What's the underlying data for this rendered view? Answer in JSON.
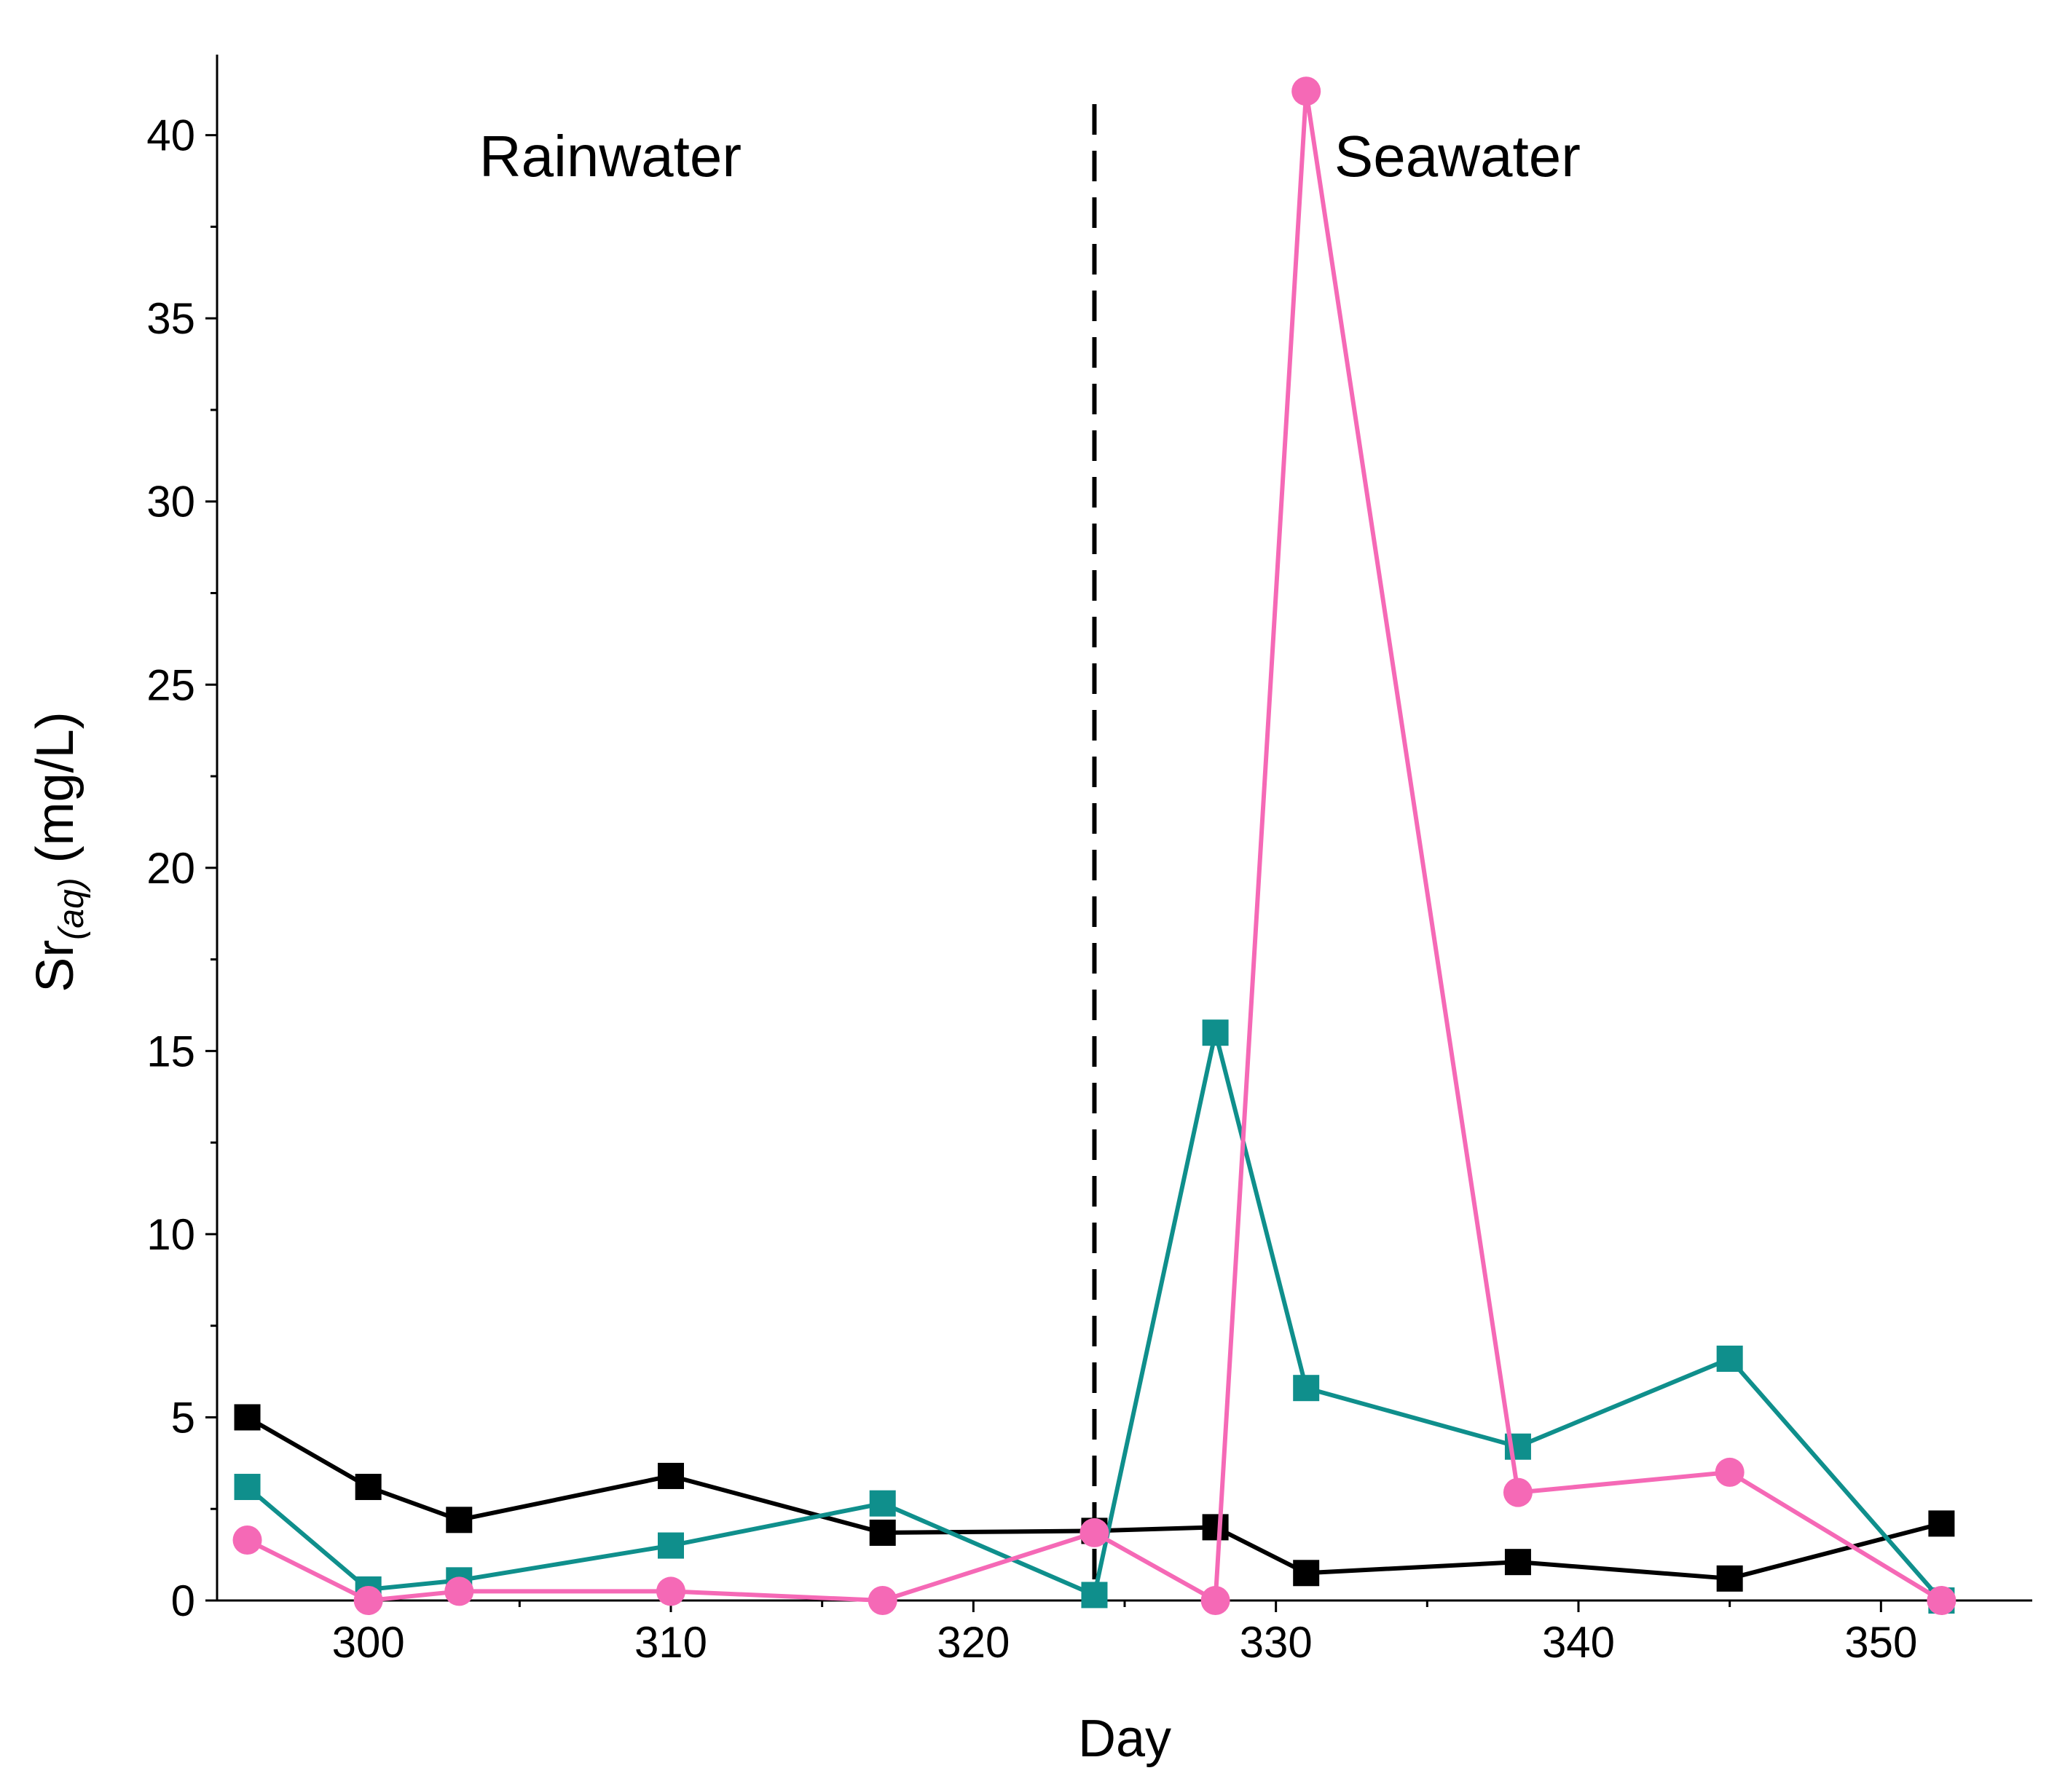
{
  "chart_data": {
    "type": "line",
    "title": "",
    "xlabel": "Day",
    "ylabel": {
      "main": "Sr",
      "subscript": "(aq)",
      "units": " (mg/L)"
    },
    "xlim": [
      295,
      355
    ],
    "ylim": [
      0,
      42
    ],
    "xticks": [
      300,
      310,
      320,
      330,
      340,
      350
    ],
    "yticks": [
      0,
      5,
      10,
      15,
      20,
      25,
      30,
      35,
      40
    ],
    "divider_x": 324,
    "regions": [
      {
        "label": "Rainwater",
        "x": 308
      },
      {
        "label": "Seawater",
        "x": 336
      }
    ],
    "series": [
      {
        "name": "black",
        "color": "#000000",
        "marker": "square",
        "points": [
          [
            296,
            5.0
          ],
          [
            300,
            3.1
          ],
          [
            303,
            2.2
          ],
          [
            310,
            3.4
          ],
          [
            317,
            1.85
          ],
          [
            324,
            1.9
          ],
          [
            328,
            2.0
          ],
          [
            331,
            0.75
          ],
          [
            338,
            1.05
          ],
          [
            345,
            0.6
          ],
          [
            352,
            2.1
          ]
        ]
      },
      {
        "name": "teal",
        "color": "#0f8f8c",
        "marker": "square",
        "points": [
          [
            296,
            3.1
          ],
          [
            300,
            0.3
          ],
          [
            303,
            0.55
          ],
          [
            310,
            1.5
          ],
          [
            317,
            2.65
          ],
          [
            324,
            0.15
          ],
          [
            328,
            15.5
          ],
          [
            331,
            5.8
          ],
          [
            338,
            4.2
          ],
          [
            345,
            6.6
          ],
          [
            352,
            0.0
          ]
        ]
      },
      {
        "name": "pink",
        "color": "#f569b6",
        "marker": "circle",
        "points": [
          [
            296,
            1.65
          ],
          [
            300,
            0.0
          ],
          [
            303,
            0.25
          ],
          [
            310,
            0.25
          ],
          [
            317,
            0.0
          ],
          [
            324,
            1.85
          ],
          [
            328,
            0.0
          ],
          [
            331,
            41.2
          ],
          [
            338,
            2.95
          ],
          [
            345,
            3.5
          ],
          [
            352,
            0.0
          ]
        ]
      }
    ]
  }
}
